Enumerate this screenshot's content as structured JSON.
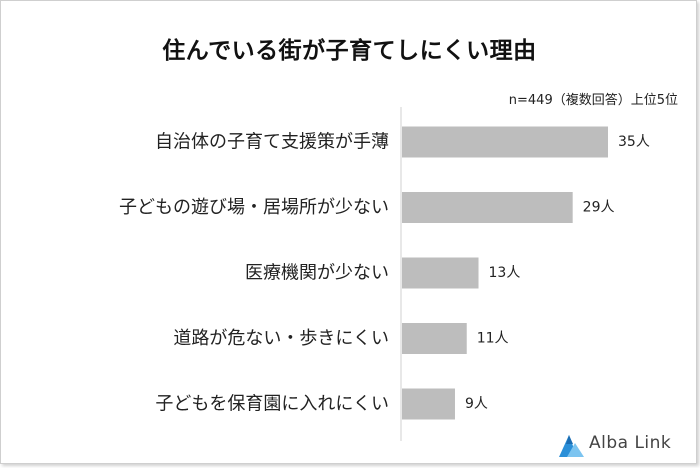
{
  "title": "住んでいる街が子育てしにくい理由",
  "note": "n=449（複数回答）上位5位",
  "brand": {
    "name": "Alba Link",
    "accent": "#2a8fd8"
  },
  "chart_data": {
    "type": "bar",
    "orientation": "horizontal",
    "title": "住んでいる街が子育てしにくい理由",
    "categories": [
      "自治体の子育て支援策が手薄",
      "子どもの遊び場・居場所が少ない",
      "医療機関が少ない",
      "道路が危ない・歩きにくい",
      "子どもを保育園に入れにくい"
    ],
    "values": [
      35,
      29,
      13,
      11,
      9
    ],
    "value_labels": [
      "35人",
      "29人",
      "13人",
      "11人",
      "9人"
    ],
    "bar_color": "#bdbdbd",
    "xlim": [
      0,
      35
    ],
    "grid": false,
    "legend": "none"
  }
}
